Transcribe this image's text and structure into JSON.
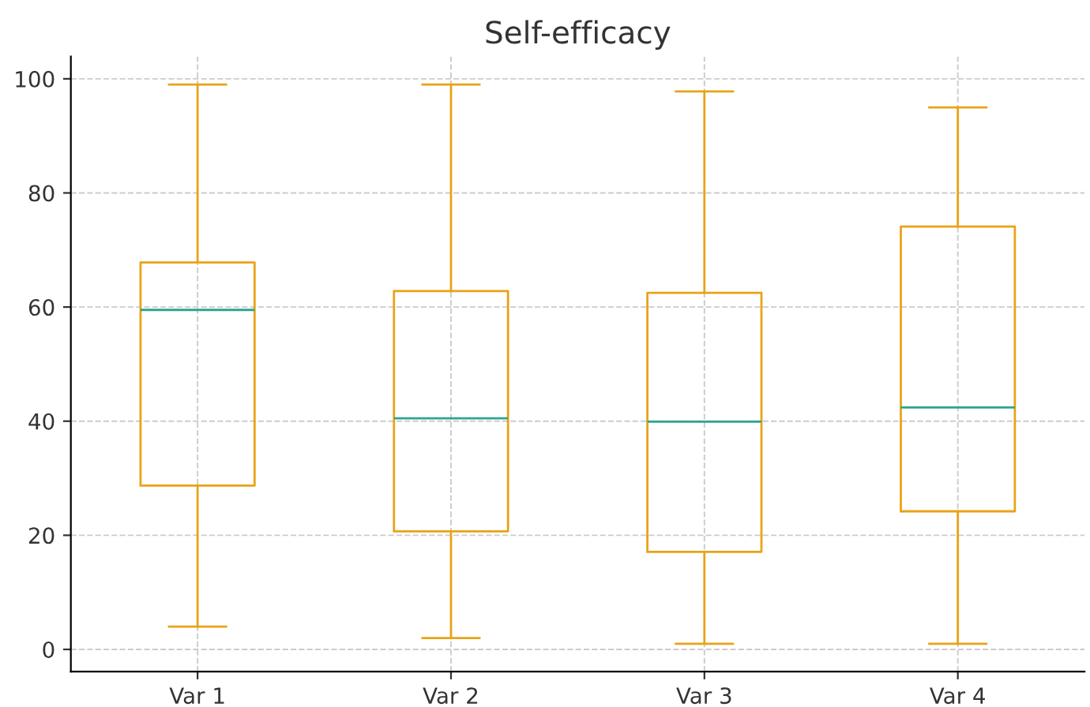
{
  "chart_data": {
    "type": "box",
    "title": "Self-efficacy",
    "categories": [
      "Var 1",
      "Var 2",
      "Var 3",
      "Var 4"
    ],
    "boxes": [
      {
        "low": 4,
        "q1": 28.7,
        "median": 59.5,
        "q3": 67.8,
        "high": 99
      },
      {
        "low": 2,
        "q1": 20.7,
        "median": 40.5,
        "q3": 62.8,
        "high": 99
      },
      {
        "low": 1,
        "q1": 17.1,
        "median": 39.9,
        "q3": 62.5,
        "high": 97.8
      },
      {
        "low": 1,
        "q1": 24.2,
        "median": 42.4,
        "q3": 74.1,
        "high": 95
      }
    ],
    "color": "#e8a317",
    "ylim": [
      -3.9,
      103.9
    ],
    "yticks": [
      0,
      20,
      40,
      60,
      80,
      100
    ],
    "grid": true
  }
}
